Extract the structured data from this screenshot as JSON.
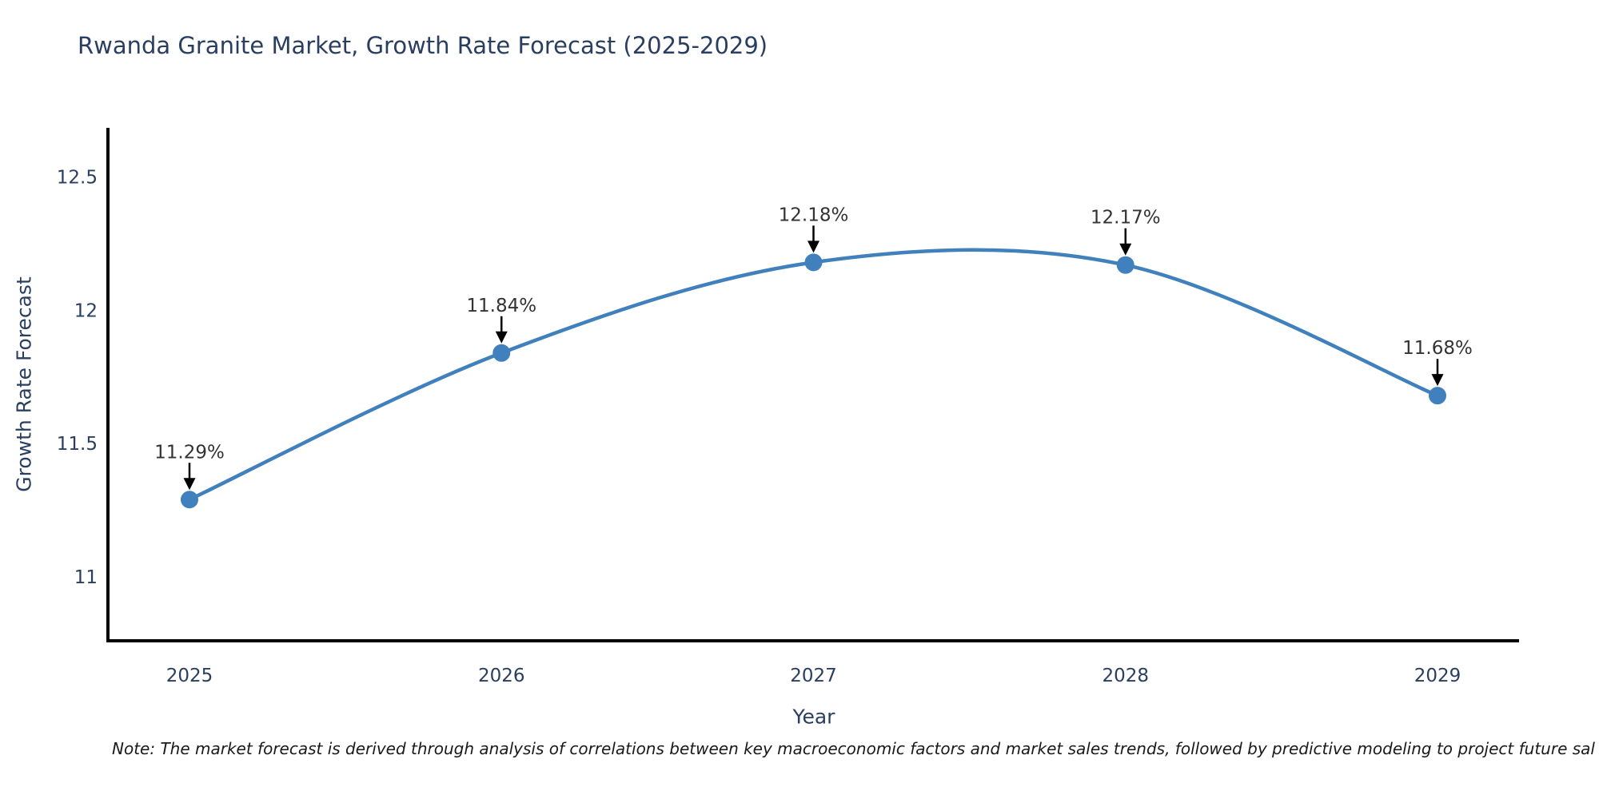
{
  "page_title": "Rwanda Granite Market, Growth Rate Forecast (2025-2029)",
  "footnote": "Note: The market forecast is derived through analysis of correlations between key macroeconomic factors and market sales trends, followed by predictive modeling to project future sal",
  "chart_data": {
    "type": "line",
    "title": "Rwanda Granite Market, Growth Rate Forecast (2025-2029)",
    "xlabel": "Year",
    "ylabel": "Growth Rate Forecast",
    "x": [
      2025,
      2026,
      2027,
      2028,
      2029
    ],
    "series": [
      {
        "name": "Growth Rate Forecast",
        "values": [
          11.29,
          11.84,
          12.18,
          12.17,
          11.68
        ]
      }
    ],
    "point_labels": [
      "11.29%",
      "11.84%",
      "12.18%",
      "12.17%",
      "11.68%"
    ],
    "yticks": [
      11,
      11.5,
      12,
      12.5
    ],
    "ytick_labels": [
      "11",
      "11.5",
      "12",
      "12.5"
    ],
    "ylim": [
      10.76,
      12.69
    ],
    "grid": false,
    "legend": "none",
    "line_smoothing": "spline",
    "colors": {
      "line": "#4080bc",
      "marker": "#4080bc",
      "axis": "#000000",
      "tick_text": "#2a3f5f",
      "title_text": "#2a3f5f",
      "annotation_text": "#333333",
      "annotation_arrow": "#000000",
      "background": "#ffffff"
    }
  }
}
